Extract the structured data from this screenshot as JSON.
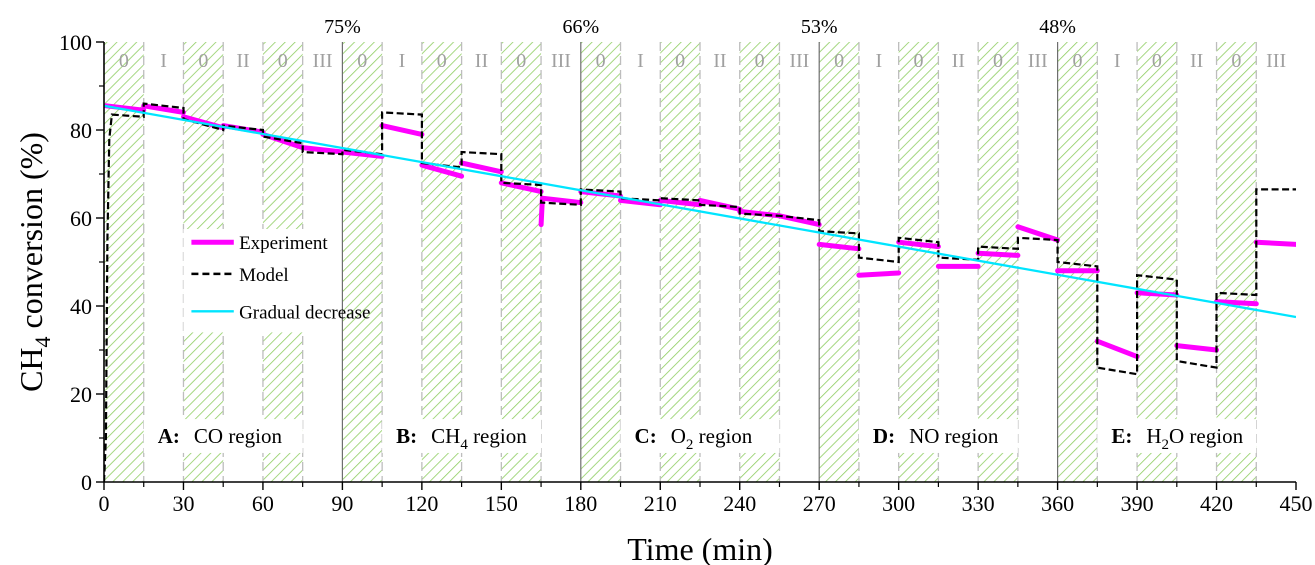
{
  "chart_data": {
    "type": "line",
    "xlabel": "Time (min)",
    "ylabel": {
      "base": "CH",
      "sub": "4",
      "rest": " conversion (%)"
    },
    "xlim": [
      0,
      450
    ],
    "ylim": [
      0,
      100
    ],
    "xticks": [
      0,
      30,
      60,
      90,
      120,
      150,
      180,
      210,
      240,
      270,
      300,
      330,
      360,
      390,
      420,
      450
    ],
    "yticks": [
      0,
      20,
      40,
      60,
      80,
      100
    ],
    "colors": {
      "experiment": "#ff00ff",
      "model": "#000000",
      "gradual": "#00e5ff",
      "hatch": "#8fce62",
      "dashed_grid": "#bdbdbd"
    },
    "region_boundaries": [
      90,
      180,
      270,
      360
    ],
    "percent_labels": [
      {
        "x": 90,
        "text": "75%"
      },
      {
        "x": 180,
        "text": "66%"
      },
      {
        "x": 270,
        "text": "53%"
      },
      {
        "x": 360,
        "text": "48%"
      }
    ],
    "phases": [
      {
        "start": 0,
        "end": 15,
        "label": "0"
      },
      {
        "start": 15,
        "end": 30,
        "label": "I"
      },
      {
        "start": 30,
        "end": 45,
        "label": "0"
      },
      {
        "start": 45,
        "end": 60,
        "label": "II"
      },
      {
        "start": 60,
        "end": 75,
        "label": "0"
      },
      {
        "start": 75,
        "end": 90,
        "label": "III"
      },
      {
        "start": 90,
        "end": 105,
        "label": "0"
      },
      {
        "start": 105,
        "end": 120,
        "label": "I"
      },
      {
        "start": 120,
        "end": 135,
        "label": "0"
      },
      {
        "start": 135,
        "end": 150,
        "label": "II"
      },
      {
        "start": 150,
        "end": 165,
        "label": "0"
      },
      {
        "start": 165,
        "end": 180,
        "label": "III"
      },
      {
        "start": 180,
        "end": 195,
        "label": "0"
      },
      {
        "start": 195,
        "end": 210,
        "label": "I"
      },
      {
        "start": 210,
        "end": 225,
        "label": "0"
      },
      {
        "start": 225,
        "end": 240,
        "label": "II"
      },
      {
        "start": 240,
        "end": 255,
        "label": "0"
      },
      {
        "start": 255,
        "end": 270,
        "label": "III"
      },
      {
        "start": 270,
        "end": 285,
        "label": "0"
      },
      {
        "start": 285,
        "end": 300,
        "label": "I"
      },
      {
        "start": 300,
        "end": 315,
        "label": "0"
      },
      {
        "start": 315,
        "end": 330,
        "label": "II"
      },
      {
        "start": 330,
        "end": 345,
        "label": "0"
      },
      {
        "start": 345,
        "end": 360,
        "label": "III"
      },
      {
        "start": 360,
        "end": 375,
        "label": "0"
      },
      {
        "start": 375,
        "end": 390,
        "label": "I"
      },
      {
        "start": 390,
        "end": 405,
        "label": "0"
      },
      {
        "start": 405,
        "end": 420,
        "label": "II"
      },
      {
        "start": 420,
        "end": 435,
        "label": "0"
      },
      {
        "start": 435,
        "end": 450,
        "label": "III"
      }
    ],
    "region_labels": [
      {
        "letter": "A:",
        "parts": [
          {
            "t": "CO region"
          }
        ],
        "x_start": 15,
        "x_end": 75
      },
      {
        "letter": "B:",
        "parts": [
          {
            "t": "CH"
          },
          {
            "t": "4",
            "sub": true
          },
          {
            "t": " region"
          }
        ],
        "x_start": 105,
        "x_end": 165
      },
      {
        "letter": "C:",
        "parts": [
          {
            "t": "O"
          },
          {
            "t": "2",
            "sub": true
          },
          {
            "t": " region"
          }
        ],
        "x_start": 195,
        "x_end": 255
      },
      {
        "letter": "D:",
        "parts": [
          {
            "t": "NO region"
          }
        ],
        "x_start": 285,
        "x_end": 345
      },
      {
        "letter": "E:",
        "parts": [
          {
            "t": "H"
          },
          {
            "t": "2",
            "sub": true
          },
          {
            "t": "O region"
          }
        ],
        "x_start": 375,
        "x_end": 435
      }
    ],
    "legend": [
      {
        "name": "Experiment",
        "style": "solid-thick",
        "color": "#ff00ff"
      },
      {
        "name": "Model",
        "style": "dashed",
        "color": "#000000"
      },
      {
        "name": "Gradual decrease",
        "style": "solid-thin",
        "color": "#00e5ff"
      }
    ],
    "series": [
      {
        "name": "Experiment",
        "color": "#ff00ff",
        "segments": [
          [
            [
              0.8,
              85.5
            ],
            [
              15,
              84.5
            ]
          ],
          [
            [
              15,
              85.5
            ],
            [
              30,
              84
            ]
          ],
          [
            [
              30,
              83
            ],
            [
              45,
              80.5
            ]
          ],
          [
            [
              45,
              81
            ],
            [
              60,
              79.5
            ]
          ],
          [
            [
              60,
              79
            ],
            [
              75,
              76
            ]
          ],
          [
            [
              75,
              76
            ],
            [
              90,
              75
            ]
          ],
          [
            [
              90,
              75
            ],
            [
              105,
              74
            ]
          ],
          [
            [
              105,
              81
            ],
            [
              120,
              79
            ]
          ],
          [
            [
              120,
              72
            ],
            [
              135,
              69.5
            ]
          ],
          [
            [
              135,
              72.5
            ],
            [
              150,
              70.5
            ]
          ],
          [
            [
              150,
              68
            ],
            [
              165,
              66
            ]
          ],
          [
            [
              165,
              58.5
            ],
            [
              165.5,
              64.5
            ],
            [
              180,
              63.5
            ]
          ],
          [
            [
              180,
              66
            ],
            [
              195,
              65
            ]
          ],
          [
            [
              195,
              64
            ],
            [
              210,
              63
            ]
          ],
          [
            [
              210,
              64
            ],
            [
              225,
              63
            ]
          ],
          [
            [
              225,
              64
            ],
            [
              240,
              62
            ]
          ],
          [
            [
              240,
              61.5
            ],
            [
              255,
              60.5
            ]
          ],
          [
            [
              255,
              60.5
            ],
            [
              270,
              58.5
            ]
          ],
          [
            [
              270,
              54
            ],
            [
              285,
              53
            ]
          ],
          [
            [
              285,
              47
            ],
            [
              300,
              47.5
            ]
          ],
          [
            [
              300,
              54.5
            ],
            [
              315,
              53.5
            ]
          ],
          [
            [
              315,
              49
            ],
            [
              330,
              49
            ]
          ],
          [
            [
              330,
              52
            ],
            [
              345,
              51.5
            ]
          ],
          [
            [
              345,
              58
            ],
            [
              360,
              55
            ]
          ],
          [
            [
              360,
              48
            ],
            [
              375,
              48
            ]
          ],
          [
            [
              375,
              32
            ],
            [
              390,
              28.5
            ]
          ],
          [
            [
              390,
              43
            ],
            [
              405,
              42.5
            ]
          ],
          [
            [
              405,
              31
            ],
            [
              420,
              30
            ]
          ],
          [
            [
              420,
              41
            ],
            [
              435,
              40.5
            ]
          ],
          [
            [
              435,
              54.5
            ],
            [
              450,
              54
            ]
          ]
        ]
      },
      {
        "name": "Model",
        "color": "#000000",
        "points": [
          [
            0,
            0
          ],
          [
            0.7,
            10
          ],
          [
            1.3,
            55
          ],
          [
            2,
            78
          ],
          [
            3,
            83.5
          ],
          [
            15,
            83
          ],
          [
            15,
            86
          ],
          [
            30,
            85
          ],
          [
            30,
            82.5
          ],
          [
            45,
            80
          ],
          [
            45,
            81
          ],
          [
            60,
            80
          ],
          [
            60,
            78.5
          ],
          [
            75,
            77
          ],
          [
            75,
            75
          ],
          [
            90,
            74.5
          ],
          [
            90,
            75.5
          ],
          [
            105,
            74.5
          ],
          [
            105,
            84
          ],
          [
            120,
            83.5
          ],
          [
            120,
            72.5
          ],
          [
            135,
            71.5
          ],
          [
            135,
            75
          ],
          [
            150,
            74.5
          ],
          [
            150,
            68
          ],
          [
            165,
            67.5
          ],
          [
            165,
            63.5
          ],
          [
            180,
            63
          ],
          [
            180,
            66.5
          ],
          [
            195,
            66
          ],
          [
            195,
            64.5
          ],
          [
            210,
            64
          ],
          [
            210,
            64.5
          ],
          [
            225,
            64
          ],
          [
            225,
            63
          ],
          [
            240,
            62.5
          ],
          [
            240,
            61
          ],
          [
            255,
            60.5
          ],
          [
            255,
            60.5
          ],
          [
            270,
            59.5
          ],
          [
            270,
            57
          ],
          [
            285,
            56.5
          ],
          [
            285,
            51
          ],
          [
            300,
            50
          ],
          [
            300,
            55.5
          ],
          [
            315,
            54.5
          ],
          [
            315,
            51
          ],
          [
            330,
            50.5
          ],
          [
            330,
            53.5
          ],
          [
            345,
            53
          ],
          [
            345,
            55.5
          ],
          [
            360,
            55
          ],
          [
            360,
            50
          ],
          [
            375,
            49
          ],
          [
            375,
            26
          ],
          [
            390,
            24.5
          ],
          [
            390,
            47
          ],
          [
            405,
            46
          ],
          [
            405,
            27.5
          ],
          [
            420,
            26
          ],
          [
            420,
            43
          ],
          [
            435,
            42.5
          ],
          [
            435,
            66.5
          ],
          [
            450,
            66.5
          ]
        ]
      },
      {
        "name": "Gradual decrease",
        "color": "#00e5ff",
        "points": [
          [
            0,
            85.5
          ],
          [
            450,
            37.5
          ]
        ]
      }
    ]
  }
}
